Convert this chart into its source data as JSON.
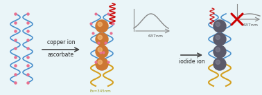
{
  "bg_color": "#eaf5f8",
  "arrow1_text_line1": "copper ion",
  "arrow1_text_line2": "ascorbate",
  "arrow2_text": "iodide ion",
  "excitation_label": "Ex=345nm",
  "emission_label1": "637nm",
  "emission_label2": "637nm",
  "dna_blue": "#4a90cc",
  "dna_pink": "#e87090",
  "dna_yellow": "#d4a020",
  "nanoparticle_color": "#cc7733",
  "nanoparticle_dark": "#5a5a6a",
  "red_coil_color": "#cc1111",
  "arrow_color": "#444444",
  "cross_color": "#cc0000",
  "peak_color": "#888888",
  "axis_color": "#888888"
}
